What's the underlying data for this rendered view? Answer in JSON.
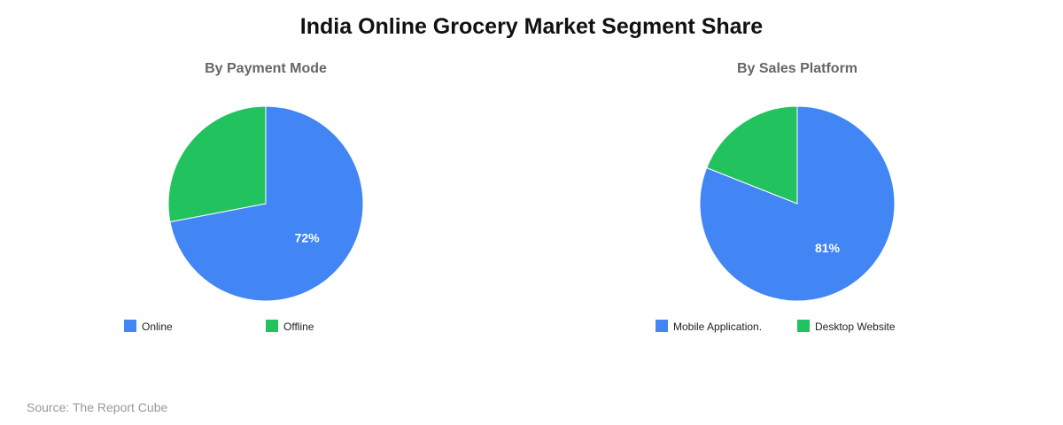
{
  "title": "India Online Grocery Market Segment Share",
  "source": "Source: The Report Cube",
  "chart_data": [
    {
      "type": "pie",
      "title": "By Payment Mode",
      "categories": [
        "Online",
        "Offline"
      ],
      "values": [
        72,
        28
      ],
      "colors": [
        "#4285f4",
        "#22c35e"
      ],
      "data_labels": [
        "72%",
        ""
      ],
      "legend_position": "bottom"
    },
    {
      "type": "pie",
      "title": "By Sales Platform",
      "categories": [
        "Mobile Application.",
        "Desktop Website"
      ],
      "values": [
        81,
        19
      ],
      "colors": [
        "#4285f4",
        "#22c35e"
      ],
      "data_labels": [
        "81%",
        ""
      ],
      "legend_position": "bottom"
    }
  ]
}
